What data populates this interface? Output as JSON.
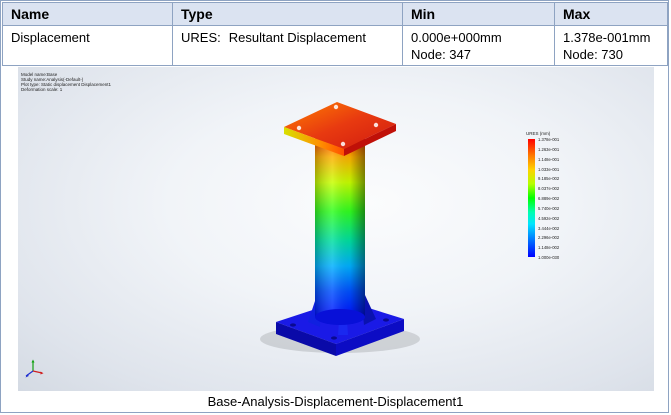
{
  "table": {
    "headers": [
      "Name",
      "Type",
      "Min",
      "Max"
    ],
    "row": {
      "name": "Displacement",
      "type_code": "URES:",
      "type_desc": "Resultant Displacement",
      "min_value": "0.000e+000mm",
      "min_node": "Node: 347",
      "max_value": "1.378e-001mm",
      "max_node": "Node: 730"
    }
  },
  "plot_info": {
    "model_name": "Model name:Base",
    "study_name": "Study name:Analysis(-Default-)",
    "plot_type": "Plot type: Static displacement Displacement1",
    "deformation": "Deformation scale: 1"
  },
  "legend": {
    "title": "URES (mm)",
    "labels": [
      "1.378e-001",
      "1.263e-001",
      "1.148e-001",
      "1.033e-001",
      "9.185e-002",
      "8.037e-002",
      "6.889e-002",
      "5.740e-002",
      "4.592e-002",
      "3.444e-002",
      "2.296e-002",
      "1.148e-002",
      "1.000e-030"
    ],
    "colors": {
      "max": "#ff0000",
      "min": "#0000ff"
    }
  },
  "axis_triad": {
    "x": "X",
    "y": "Y",
    "z": "Z"
  },
  "caption": "Base-Analysis-Displacement-Displacement1"
}
